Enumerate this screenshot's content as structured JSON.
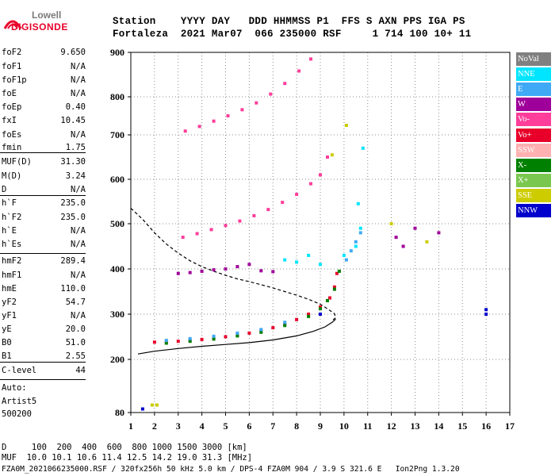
{
  "logo": {
    "line1": "Lowell",
    "line2": "DIGISONDE"
  },
  "header": {
    "line1": "Station    YYYY DAY   DDD HHMMSS P1  FFS S AXN PPS IGA PS",
    "line2": "Fortaleza  2021 Mar07  066 235000 RSF     1 714 100 10+ 11"
  },
  "params": [
    {
      "label": "foF2",
      "value": "9.650"
    },
    {
      "label": "foF1",
      "value": "N/A"
    },
    {
      "label": "foF1p",
      "value": "N/A"
    },
    {
      "label": "foE",
      "value": "N/A"
    },
    {
      "label": "foEp",
      "value": "0.40"
    },
    {
      "label": "fxI",
      "value": "10.45"
    },
    {
      "label": "foEs",
      "value": "N/A"
    },
    {
      "label": "fmin",
      "value": "1.75"
    },
    {
      "label": "MUF(D)",
      "value": "31.30"
    },
    {
      "label": "M(D)",
      "value": "3.24"
    },
    {
      "label": "D",
      "value": "N/A"
    },
    {
      "label": "h`F",
      "value": "235.0"
    },
    {
      "label": "h`F2",
      "value": "235.0"
    },
    {
      "label": "h`E",
      "value": "N/A"
    },
    {
      "label": "h`Es",
      "value": "N/A"
    },
    {
      "label": "hmF2",
      "value": "289.4"
    },
    {
      "label": "hmF1",
      "value": "N/A"
    },
    {
      "label": "hmE",
      "value": "110.0"
    },
    {
      "label": "yF2",
      "value": "54.7"
    },
    {
      "label": "yF1",
      "value": "N/A"
    },
    {
      "label": "yE",
      "value": "20.0"
    },
    {
      "label": "B0",
      "value": "51.0"
    },
    {
      "label": "B1",
      "value": "2.55"
    },
    {
      "label": "C-level",
      "value": "44"
    }
  ],
  "autoscaling": {
    "line1": "Auto:",
    "line2": "Artist5",
    "line3": "500200"
  },
  "footer": {
    "line1": "D     100  200  400  600  800 1000 1500 3000 [km]",
    "line2": "MUF  10.0 10.1 10.6 11.4 12.5 14.2 19.0 31.3 [MHz]",
    "line3": "FZA0M_2021066235000.RSF / 320fx256h 50 kHz 5.0 km / DPS-4 FZA0M 904 / 3.9 S 321.6 E   Ion2Png 1.3.20"
  },
  "legend": [
    {
      "label": "NoVal",
      "color": "#808080"
    },
    {
      "label": "NNE",
      "color": "#00e5ff"
    },
    {
      "label": "E",
      "color": "#3fa9f5"
    },
    {
      "label": "W",
      "color": "#a0009a"
    },
    {
      "label": "Vo-",
      "color": "#ff3d9a"
    },
    {
      "label": "Vo+",
      "color": "#e8002a"
    },
    {
      "label": "SSW",
      "color": "#ffb0b0"
    },
    {
      "label": "X-",
      "color": "#008000"
    },
    {
      "label": "X+",
      "color": "#7ac74f"
    },
    {
      "label": "SSE",
      "color": "#cccc00"
    },
    {
      "label": "NNW",
      "color": "#0000cc"
    }
  ],
  "chart_data": {
    "type": "scatter",
    "xlim": [
      1,
      17
    ],
    "ylim": [
      80,
      900
    ],
    "x_ticks": [
      "1",
      "2",
      "3",
      "4",
      "5",
      "6",
      "7",
      "8",
      "9",
      "10",
      "11",
      "12",
      "13",
      "14",
      "15",
      "16",
      "17"
    ],
    "y_ticks": [
      "80",
      "200",
      "300",
      "400",
      "500",
      "600",
      "700",
      "800",
      "900"
    ],
    "grid": true,
    "series": [
      {
        "name": "Vo+",
        "color": "#e8002a",
        "points": [
          [
            2.0,
            238
          ],
          [
            2.5,
            238
          ],
          [
            3.0,
            240
          ],
          [
            3.5,
            242
          ],
          [
            4.0,
            244
          ],
          [
            4.5,
            247
          ],
          [
            5.0,
            250
          ],
          [
            5.5,
            254
          ],
          [
            6.0,
            258
          ],
          [
            6.5,
            263
          ],
          [
            7.0,
            270
          ],
          [
            7.5,
            278
          ],
          [
            8.0,
            288
          ],
          [
            8.5,
            300
          ],
          [
            9.0,
            316
          ],
          [
            9.4,
            336
          ],
          [
            9.6,
            360
          ],
          [
            9.7,
            390
          ]
        ]
      },
      {
        "name": "X-",
        "color": "#008000",
        "points": [
          [
            2.5,
            236
          ],
          [
            3.5,
            240
          ],
          [
            4.5,
            245
          ],
          [
            5.5,
            252
          ],
          [
            6.5,
            260
          ],
          [
            7.5,
            275
          ],
          [
            8.5,
            295
          ],
          [
            9.0,
            312
          ],
          [
            9.3,
            330
          ],
          [
            9.6,
            355
          ],
          [
            9.8,
            395
          ]
        ]
      },
      {
        "name": "Vo-",
        "color": "#ff3d9a",
        "points": [
          [
            3.2,
            470
          ],
          [
            3.8,
            478
          ],
          [
            4.4,
            487
          ],
          [
            5.0,
            496
          ],
          [
            5.6,
            506
          ],
          [
            6.2,
            518
          ],
          [
            6.8,
            532
          ],
          [
            7.4,
            548
          ],
          [
            8.0,
            566
          ],
          [
            8.6,
            590
          ],
          [
            9.0,
            610
          ],
          [
            9.3,
            650
          ],
          [
            3.3,
            710
          ],
          [
            3.9,
            722
          ],
          [
            4.5,
            736
          ],
          [
            5.1,
            750
          ],
          [
            5.7,
            766
          ],
          [
            6.3,
            784
          ],
          [
            6.9,
            806
          ],
          [
            7.5,
            830
          ],
          [
            8.1,
            858
          ],
          [
            8.6,
            885
          ]
        ]
      },
      {
        "name": "W",
        "color": "#a0009a",
        "points": [
          [
            3.0,
            390
          ],
          [
            3.5,
            392
          ],
          [
            4.0,
            395
          ],
          [
            4.5,
            398
          ],
          [
            5.0,
            400
          ],
          [
            5.5,
            405
          ],
          [
            6.0,
            410
          ],
          [
            6.5,
            396
          ],
          [
            7.0,
            394
          ],
          [
            12.2,
            470
          ],
          [
            12.5,
            450
          ],
          [
            13.0,
            490
          ],
          [
            14.0,
            480
          ]
        ]
      },
      {
        "name": "E",
        "color": "#3fa9f5",
        "points": [
          [
            2.5,
            242
          ],
          [
            3.5,
            246
          ],
          [
            4.5,
            251
          ],
          [
            5.5,
            258
          ],
          [
            6.5,
            266
          ],
          [
            7.5,
            282
          ],
          [
            10.1,
            420
          ],
          [
            10.3,
            440
          ],
          [
            10.5,
            460
          ],
          [
            10.7,
            480
          ]
        ]
      },
      {
        "name": "NNE",
        "color": "#00e5ff",
        "points": [
          [
            7.5,
            420
          ],
          [
            8.0,
            415
          ],
          [
            8.5,
            430
          ],
          [
            9.0,
            410
          ],
          [
            10.0,
            430
          ],
          [
            10.5,
            450
          ],
          [
            10.7,
            490
          ],
          [
            10.6,
            545
          ],
          [
            10.8,
            670
          ]
        ]
      },
      {
        "name": "SSE",
        "color": "#cccc00",
        "points": [
          [
            1.9,
            97
          ],
          [
            2.1,
            97
          ],
          [
            9.5,
            655
          ],
          [
            10.1,
            725
          ],
          [
            12.0,
            500
          ],
          [
            13.5,
            460
          ]
        ]
      },
      {
        "name": "NNW",
        "color": "#0000cc",
        "points": [
          [
            1.5,
            88
          ],
          [
            9.0,
            300
          ],
          [
            16.0,
            310
          ],
          [
            16.0,
            300
          ]
        ]
      }
    ],
    "curves": [
      {
        "name": "virtual height (dashed)",
        "style": "dashed",
        "points": [
          [
            1.0,
            535
          ],
          [
            1.5,
            510
          ],
          [
            2.0,
            480
          ],
          [
            2.5,
            455
          ],
          [
            3.0,
            435
          ],
          [
            3.5,
            418
          ],
          [
            4.0,
            405
          ],
          [
            4.5,
            395
          ],
          [
            5.0,
            386
          ],
          [
            5.5,
            378
          ],
          [
            6.0,
            372
          ],
          [
            6.5,
            365
          ],
          [
            7.0,
            358
          ],
          [
            7.5,
            350
          ],
          [
            8.0,
            342
          ],
          [
            8.5,
            333
          ],
          [
            9.0,
            322
          ],
          [
            9.3,
            312
          ],
          [
            9.6,
            301
          ],
          [
            9.65,
            292
          ],
          [
            9.5,
            286
          ]
        ]
      },
      {
        "name": "true height (solid)",
        "style": "solid",
        "points": [
          [
            1.3,
            212
          ],
          [
            2.0,
            218
          ],
          [
            3.0,
            224
          ],
          [
            4.0,
            229
          ],
          [
            5.0,
            233
          ],
          [
            6.0,
            237
          ],
          [
            7.0,
            243
          ],
          [
            8.0,
            252
          ],
          [
            8.7,
            262
          ],
          [
            9.2,
            272
          ],
          [
            9.5,
            282
          ],
          [
            9.65,
            289
          ]
        ]
      }
    ]
  }
}
